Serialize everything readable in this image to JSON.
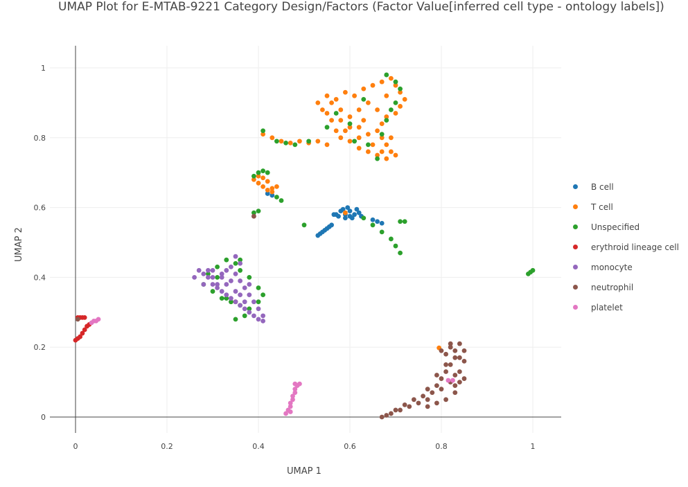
{
  "chart_data": {
    "type": "scatter",
    "title": "UMAP Plot for E-MTAB-9221 Category Design/Factors (Factor Value[inferred cell type - ontology labels])",
    "xlabel": "UMAP 1",
    "ylabel": "UMAP 2",
    "xlim": [
      -0.05,
      1.06
    ],
    "ylim": [
      -0.045,
      1.06
    ],
    "x_ticks": [
      0,
      0.2,
      0.4,
      0.6,
      0.8,
      1
    ],
    "x_tick_labels": [
      "0",
      "0.2",
      "0.4",
      "0.6",
      "0.8",
      "1"
    ],
    "y_ticks": [
      0,
      0.2,
      0.4,
      0.6,
      0.8,
      1
    ],
    "y_tick_labels": [
      "0",
      "0.2",
      "0.4",
      "0.6",
      "0.8",
      "1"
    ],
    "grid": true,
    "legend_position": "right",
    "series": [
      {
        "name": "B cell",
        "color": "#1f77b4",
        "points": [
          [
            0.57,
            0.58
          ],
          [
            0.58,
            0.59
          ],
          [
            0.59,
            0.58
          ],
          [
            0.6,
            0.59
          ],
          [
            0.61,
            0.58
          ],
          [
            0.62,
            0.585
          ],
          [
            0.6,
            0.575
          ],
          [
            0.585,
            0.595
          ],
          [
            0.575,
            0.575
          ],
          [
            0.615,
            0.595
          ],
          [
            0.595,
            0.6
          ],
          [
            0.565,
            0.58
          ],
          [
            0.625,
            0.575
          ],
          [
            0.605,
            0.57
          ],
          [
            0.59,
            0.57
          ],
          [
            0.53,
            0.52
          ],
          [
            0.535,
            0.525
          ],
          [
            0.54,
            0.53
          ],
          [
            0.545,
            0.535
          ],
          [
            0.55,
            0.54
          ],
          [
            0.555,
            0.545
          ],
          [
            0.56,
            0.55
          ],
          [
            0.65,
            0.565
          ],
          [
            0.66,
            0.56
          ],
          [
            0.67,
            0.555
          ],
          [
            0.42,
            0.64
          ],
          [
            0.43,
            0.635
          ]
        ]
      },
      {
        "name": "T cell",
        "color": "#ff7f0e",
        "points": [
          [
            0.53,
            0.9
          ],
          [
            0.55,
            0.92
          ],
          [
            0.57,
            0.91
          ],
          [
            0.59,
            0.93
          ],
          [
            0.61,
            0.92
          ],
          [
            0.63,
            0.94
          ],
          [
            0.65,
            0.95
          ],
          [
            0.67,
            0.96
          ],
          [
            0.69,
            0.97
          ],
          [
            0.7,
            0.95
          ],
          [
            0.71,
            0.93
          ],
          [
            0.72,
            0.91
          ],
          [
            0.71,
            0.89
          ],
          [
            0.7,
            0.87
          ],
          [
            0.68,
            0.86
          ],
          [
            0.67,
            0.84
          ],
          [
            0.66,
            0.82
          ],
          [
            0.67,
            0.8
          ],
          [
            0.68,
            0.78
          ],
          [
            0.69,
            0.76
          ],
          [
            0.7,
            0.75
          ],
          [
            0.68,
            0.74
          ],
          [
            0.66,
            0.75
          ],
          [
            0.64,
            0.76
          ],
          [
            0.62,
            0.77
          ],
          [
            0.6,
            0.79
          ],
          [
            0.58,
            0.8
          ],
          [
            0.57,
            0.82
          ],
          [
            0.56,
            0.85
          ],
          [
            0.55,
            0.87
          ],
          [
            0.58,
            0.88
          ],
          [
            0.6,
            0.86
          ],
          [
            0.62,
            0.88
          ],
          [
            0.64,
            0.9
          ],
          [
            0.62,
            0.83
          ],
          [
            0.64,
            0.81
          ],
          [
            0.6,
            0.83
          ],
          [
            0.66,
            0.88
          ],
          [
            0.68,
            0.92
          ],
          [
            0.54,
            0.88
          ],
          [
            0.56,
            0.9
          ],
          [
            0.58,
            0.85
          ],
          [
            0.63,
            0.85
          ],
          [
            0.65,
            0.78
          ],
          [
            0.67,
            0.76
          ],
          [
            0.69,
            0.8
          ],
          [
            0.62,
            0.8
          ],
          [
            0.59,
            0.82
          ],
          [
            0.45,
            0.79
          ],
          [
            0.47,
            0.785
          ],
          [
            0.49,
            0.79
          ],
          [
            0.51,
            0.785
          ],
          [
            0.53,
            0.79
          ],
          [
            0.55,
            0.78
          ],
          [
            0.43,
            0.8
          ],
          [
            0.41,
            0.81
          ],
          [
            0.39,
            0.68
          ],
          [
            0.4,
            0.67
          ],
          [
            0.41,
            0.66
          ],
          [
            0.42,
            0.65
          ],
          [
            0.43,
            0.655
          ],
          [
            0.44,
            0.66
          ],
          [
            0.41,
            0.685
          ],
          [
            0.4,
            0.69
          ],
          [
            0.42,
            0.675
          ],
          [
            0.43,
            0.645
          ],
          [
            0.59,
            0.585
          ],
          [
            0.795,
            0.198
          ]
        ]
      },
      {
        "name": "Unspecified",
        "color": "#2ca02c",
        "points": [
          [
            0.68,
            0.98
          ],
          [
            0.7,
            0.96
          ],
          [
            0.71,
            0.94
          ],
          [
            0.68,
            0.85
          ],
          [
            0.69,
            0.88
          ],
          [
            0.67,
            0.81
          ],
          [
            0.66,
            0.74
          ],
          [
            0.61,
            0.79
          ],
          [
            0.55,
            0.83
          ],
          [
            0.57,
            0.87
          ],
          [
            0.7,
            0.9
          ],
          [
            0.64,
            0.78
          ],
          [
            0.6,
            0.84
          ],
          [
            0.63,
            0.91
          ],
          [
            0.41,
            0.82
          ],
          [
            0.44,
            0.79
          ],
          [
            0.46,
            0.785
          ],
          [
            0.48,
            0.78
          ],
          [
            0.51,
            0.79
          ],
          [
            0.39,
            0.69
          ],
          [
            0.4,
            0.7
          ],
          [
            0.41,
            0.705
          ],
          [
            0.42,
            0.7
          ],
          [
            0.44,
            0.63
          ],
          [
            0.45,
            0.62
          ],
          [
            0.5,
            0.55
          ],
          [
            0.39,
            0.585
          ],
          [
            0.4,
            0.59
          ],
          [
            0.63,
            0.57
          ],
          [
            0.65,
            0.55
          ],
          [
            0.67,
            0.53
          ],
          [
            0.69,
            0.51
          ],
          [
            0.7,
            0.49
          ],
          [
            0.71,
            0.47
          ],
          [
            0.71,
            0.56
          ],
          [
            0.72,
            0.56
          ],
          [
            0.28,
            0.38
          ],
          [
            0.3,
            0.36
          ],
          [
            0.32,
            0.34
          ],
          [
            0.34,
            0.33
          ],
          [
            0.36,
            0.32
          ],
          [
            0.38,
            0.31
          ],
          [
            0.4,
            0.33
          ],
          [
            0.41,
            0.35
          ],
          [
            0.4,
            0.37
          ],
          [
            0.38,
            0.4
          ],
          [
            0.36,
            0.42
          ],
          [
            0.35,
            0.44
          ],
          [
            0.33,
            0.45
          ],
          [
            0.31,
            0.43
          ],
          [
            0.29,
            0.41
          ],
          [
            0.37,
            0.29
          ],
          [
            0.35,
            0.28
          ],
          [
            0.33,
            0.34
          ],
          [
            0.31,
            0.4
          ],
          [
            0.36,
            0.45
          ],
          [
            0.99,
            0.41
          ],
          [
            0.995,
            0.415
          ],
          [
            1.0,
            0.42
          ]
        ]
      },
      {
        "name": "erythroid lineage cell",
        "color": "#d62728",
        "points": [
          [
            0.005,
            0.285
          ],
          [
            0.01,
            0.285
          ],
          [
            0.015,
            0.285
          ],
          [
            0.02,
            0.285
          ],
          [
            0.0,
            0.22
          ],
          [
            0.005,
            0.225
          ],
          [
            0.01,
            0.23
          ],
          [
            0.015,
            0.24
          ],
          [
            0.02,
            0.25
          ],
          [
            0.025,
            0.26
          ],
          [
            0.03,
            0.265
          ],
          [
            0.35,
            0.33
          ]
        ]
      },
      {
        "name": "monocyte",
        "color": "#9467bd",
        "points": [
          [
            0.27,
            0.42
          ],
          [
            0.28,
            0.41
          ],
          [
            0.29,
            0.4
          ],
          [
            0.3,
            0.38
          ],
          [
            0.31,
            0.37
          ],
          [
            0.32,
            0.36
          ],
          [
            0.33,
            0.35
          ],
          [
            0.34,
            0.34
          ],
          [
            0.35,
            0.33
          ],
          [
            0.36,
            0.32
          ],
          [
            0.37,
            0.31
          ],
          [
            0.38,
            0.3
          ],
          [
            0.39,
            0.29
          ],
          [
            0.4,
            0.28
          ],
          [
            0.41,
            0.275
          ],
          [
            0.41,
            0.29
          ],
          [
            0.4,
            0.31
          ],
          [
            0.39,
            0.33
          ],
          [
            0.38,
            0.35
          ],
          [
            0.37,
            0.37
          ],
          [
            0.36,
            0.39
          ],
          [
            0.35,
            0.41
          ],
          [
            0.34,
            0.43
          ],
          [
            0.33,
            0.42
          ],
          [
            0.32,
            0.4
          ],
          [
            0.31,
            0.38
          ],
          [
            0.3,
            0.4
          ],
          [
            0.29,
            0.42
          ],
          [
            0.28,
            0.38
          ],
          [
            0.26,
            0.4
          ],
          [
            0.33,
            0.38
          ],
          [
            0.35,
            0.36
          ],
          [
            0.34,
            0.39
          ],
          [
            0.36,
            0.35
          ],
          [
            0.37,
            0.33
          ],
          [
            0.32,
            0.41
          ],
          [
            0.3,
            0.42
          ],
          [
            0.35,
            0.46
          ],
          [
            0.36,
            0.44
          ],
          [
            0.38,
            0.38
          ]
        ]
      },
      {
        "name": "neutrophil",
        "color": "#8c564b",
        "points": [
          [
            0.67,
            0.0
          ],
          [
            0.69,
            0.01
          ],
          [
            0.71,
            0.02
          ],
          [
            0.73,
            0.03
          ],
          [
            0.75,
            0.04
          ],
          [
            0.77,
            0.05
          ],
          [
            0.78,
            0.07
          ],
          [
            0.79,
            0.09
          ],
          [
            0.8,
            0.11
          ],
          [
            0.81,
            0.13
          ],
          [
            0.82,
            0.15
          ],
          [
            0.83,
            0.17
          ],
          [
            0.83,
            0.19
          ],
          [
            0.82,
            0.2
          ],
          [
            0.81,
            0.18
          ],
          [
            0.84,
            0.21
          ],
          [
            0.85,
            0.19
          ],
          [
            0.85,
            0.16
          ],
          [
            0.84,
            0.13
          ],
          [
            0.84,
            0.1
          ],
          [
            0.85,
            0.11
          ],
          [
            0.83,
            0.07
          ],
          [
            0.81,
            0.05
          ],
          [
            0.79,
            0.04
          ],
          [
            0.77,
            0.03
          ],
          [
            0.8,
            0.08
          ],
          [
            0.82,
            0.1
          ],
          [
            0.83,
            0.12
          ],
          [
            0.81,
            0.15
          ],
          [
            0.79,
            0.12
          ],
          [
            0.77,
            0.08
          ],
          [
            0.76,
            0.06
          ],
          [
            0.74,
            0.05
          ],
          [
            0.72,
            0.035
          ],
          [
            0.7,
            0.02
          ],
          [
            0.68,
            0.005
          ],
          [
            0.82,
            0.21
          ],
          [
            0.84,
            0.17
          ],
          [
            0.8,
            0.19
          ],
          [
            0.83,
            0.09
          ],
          [
            0.39,
            0.575
          ],
          [
            0.005,
            0.28
          ]
        ]
      },
      {
        "name": "platelet",
        "color": "#e377c2",
        "points": [
          [
            0.46,
            0.01
          ],
          [
            0.465,
            0.02
          ],
          [
            0.47,
            0.03
          ],
          [
            0.47,
            0.04
          ],
          [
            0.475,
            0.05
          ],
          [
            0.475,
            0.06
          ],
          [
            0.48,
            0.07
          ],
          [
            0.48,
            0.08
          ],
          [
            0.485,
            0.09
          ],
          [
            0.49,
            0.095
          ],
          [
            0.48,
            0.095
          ],
          [
            0.47,
            0.015
          ],
          [
            0.04,
            0.275
          ],
          [
            0.045,
            0.275
          ],
          [
            0.05,
            0.28
          ],
          [
            0.035,
            0.27
          ],
          [
            0.815,
            0.105
          ],
          [
            0.825,
            0.105
          ]
        ]
      }
    ]
  }
}
